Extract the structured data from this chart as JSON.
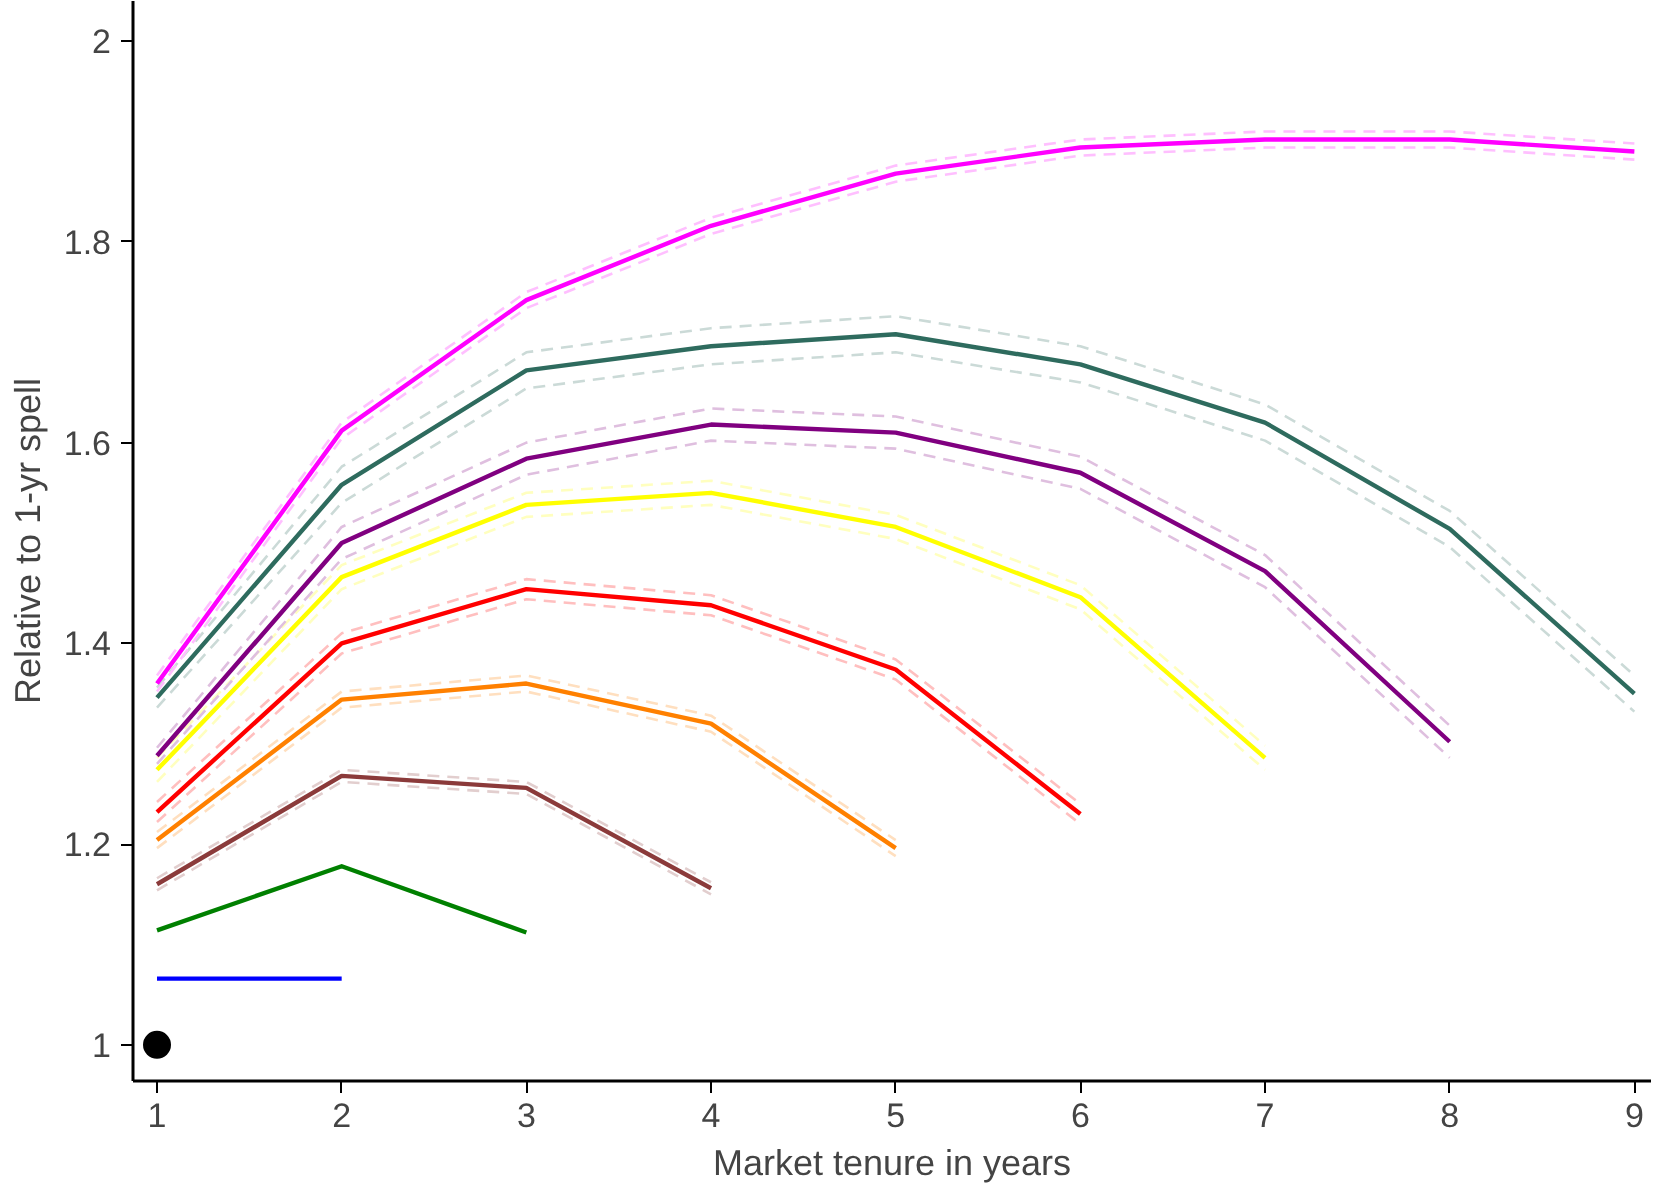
{
  "chart_data": {
    "type": "line",
    "xlabel": "Market tenure in years",
    "ylabel": "Relative to 1-yr spell",
    "xlim": [
      0.87,
      9.09
    ],
    "ylim": [
      0.964,
      2.04
    ],
    "xticks": [
      1,
      2,
      3,
      4,
      5,
      6,
      7,
      8,
      9
    ],
    "yticks": [
      1,
      1.2,
      1.4,
      1.6,
      1.8,
      2
    ],
    "grid": false,
    "series": [
      {
        "type": "scatter",
        "marker": "circle",
        "color": "#000000",
        "x": [
          1
        ],
        "values": [
          1
        ]
      },
      {
        "color": "#0000ff",
        "x": [
          1,
          2
        ],
        "values": [
          1.066,
          1.066
        ]
      },
      {
        "color": "#008000",
        "x": [
          1,
          2,
          3
        ],
        "values": [
          1.114,
          1.178,
          1.112
        ]
      },
      {
        "color": "#e2cece",
        "line_style": "dashed",
        "x": [
          1,
          2,
          3,
          4
        ],
        "values": [
          1.154,
          1.262,
          1.25,
          1.15
        ]
      },
      {
        "color": "#e2cece",
        "line_style": "dashed",
        "x": [
          1,
          2,
          3,
          4
        ],
        "values": [
          1.166,
          1.274,
          1.262,
          1.162
        ]
      },
      {
        "color": "#8b3a3a",
        "x": [
          1,
          2,
          3,
          4
        ],
        "values": [
          1.16,
          1.268,
          1.256,
          1.156
        ]
      },
      {
        "color": "#ffdfbf",
        "line_style": "dashed",
        "x": [
          1,
          2,
          3,
          4,
          5
        ],
        "values": [
          1.196,
          1.336,
          1.352,
          1.312,
          1.188
        ]
      },
      {
        "color": "#ffdfbf",
        "line_style": "dashed",
        "x": [
          1,
          2,
          3,
          4,
          5
        ],
        "values": [
          1.212,
          1.352,
          1.368,
          1.328,
          1.204
        ]
      },
      {
        "color": "#ff8000",
        "x": [
          1,
          2,
          3,
          4,
          5
        ],
        "values": [
          1.204,
          1.344,
          1.36,
          1.32,
          1.196
        ]
      },
      {
        "color": "#ffbfbf",
        "line_style": "dashed",
        "x": [
          1,
          2,
          3,
          4,
          5,
          6
        ],
        "values": [
          1.222,
          1.39,
          1.444,
          1.428,
          1.364,
          1.22
        ]
      },
      {
        "color": "#ffbfbf",
        "line_style": "dashed",
        "x": [
          1,
          2,
          3,
          4,
          5,
          6
        ],
        "values": [
          1.242,
          1.41,
          1.464,
          1.448,
          1.384,
          1.24
        ]
      },
      {
        "color": "#ff0000",
        "x": [
          1,
          2,
          3,
          4,
          5,
          6
        ],
        "values": [
          1.232,
          1.4,
          1.454,
          1.438,
          1.374,
          1.23
        ]
      },
      {
        "color": "#ffffbf",
        "line_style": "dashed",
        "x": [
          1,
          2,
          3,
          4,
          5,
          6,
          7
        ],
        "values": [
          1.262,
          1.454,
          1.526,
          1.538,
          1.504,
          1.434,
          1.274
        ]
      },
      {
        "color": "#ffffbf",
        "line_style": "dashed",
        "x": [
          1,
          2,
          3,
          4,
          5,
          6,
          7
        ],
        "values": [
          1.286,
          1.478,
          1.55,
          1.562,
          1.528,
          1.458,
          1.298
        ]
      },
      {
        "color": "#ffff00",
        "x": [
          1,
          2,
          3,
          4,
          5,
          6,
          7
        ],
        "values": [
          1.274,
          1.466,
          1.538,
          1.55,
          1.516,
          1.446,
          1.286
        ]
      },
      {
        "color": "#dfbfdf",
        "line_style": "dashed",
        "x": [
          1,
          2,
          3,
          4,
          5,
          6,
          7,
          8
        ],
        "values": [
          1.28,
          1.484,
          1.568,
          1.602,
          1.594,
          1.554,
          1.456,
          1.286
        ]
      },
      {
        "color": "#dfbfdf",
        "line_style": "dashed",
        "x": [
          1,
          2,
          3,
          4,
          5,
          6,
          7,
          8
        ],
        "values": [
          1.296,
          1.516,
          1.6,
          1.634,
          1.626,
          1.586,
          1.488,
          1.318
        ]
      },
      {
        "color": "#800080",
        "x": [
          1,
          2,
          3,
          4,
          5,
          6,
          7,
          8
        ],
        "values": [
          1.288,
          1.5,
          1.584,
          1.618,
          1.61,
          1.57,
          1.472,
          1.302
        ]
      },
      {
        "color": "#cbdad7",
        "line_style": "dashed",
        "x": [
          1,
          2,
          3,
          4,
          5,
          6,
          7,
          8,
          9
        ],
        "values": [
          1.336,
          1.54,
          1.654,
          1.678,
          1.69,
          1.66,
          1.602,
          1.496,
          1.332
        ]
      },
      {
        "color": "#cbdad7",
        "line_style": "dashed",
        "x": [
          1,
          2,
          3,
          4,
          5,
          6,
          7,
          8,
          9
        ],
        "values": [
          1.356,
          1.576,
          1.69,
          1.714,
          1.726,
          1.696,
          1.638,
          1.532,
          1.368
        ]
      },
      {
        "color": "#2e6b5e",
        "x": [
          1,
          2,
          3,
          4,
          5,
          6,
          7,
          8,
          9
        ],
        "values": [
          1.346,
          1.558,
          1.672,
          1.696,
          1.708,
          1.678,
          1.62,
          1.514,
          1.35
        ]
      },
      {
        "color": "#ffbfff",
        "line_style": "dashed",
        "x": [
          1,
          2,
          3,
          4,
          5,
          6,
          7,
          8,
          9
        ],
        "values": [
          1.352,
          1.604,
          1.734,
          1.808,
          1.86,
          1.886,
          1.894,
          1.894,
          1.882
        ]
      },
      {
        "color": "#ffbfff",
        "line_style": "dashed",
        "x": [
          1,
          2,
          3,
          4,
          5,
          6,
          7,
          8,
          9
        ],
        "values": [
          1.368,
          1.62,
          1.75,
          1.824,
          1.876,
          1.902,
          1.91,
          1.91,
          1.898
        ]
      },
      {
        "color": "#ff00ff",
        "x": [
          1,
          2,
          3,
          4,
          5,
          6,
          7,
          8,
          9
        ],
        "values": [
          1.36,
          1.612,
          1.742,
          1.816,
          1.868,
          1.894,
          1.902,
          1.902,
          1.89
        ]
      }
    ]
  }
}
